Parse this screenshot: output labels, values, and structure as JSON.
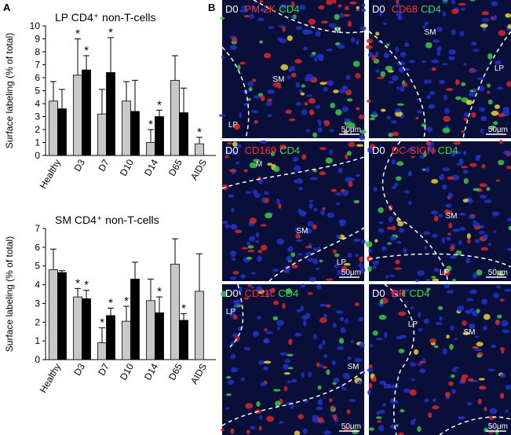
{
  "figure": {
    "panel_a_label": "A",
    "panel_b_label": "B"
  },
  "chart_data": [
    {
      "type": "bar",
      "title": "LP CD4⁺ non-T-cells",
      "y_label": "Surface labeling (% of total)",
      "categories": [
        "Healthy",
        "D3",
        "D7",
        "D10",
        "D14",
        "D65",
        "AIDS"
      ],
      "series": [
        {
          "color": "#c8c8c8",
          "values": [
            4.2,
            6.2,
            3.2,
            4.2,
            1.0,
            5.8,
            0.9
          ],
          "errors": [
            1.5,
            2.8,
            1.9,
            1.5,
            1.0,
            1.9,
            0.5
          ],
          "markers": [
            null,
            "*",
            null,
            null,
            "*",
            null,
            "*"
          ]
        },
        {
          "color": "#000000",
          "values": [
            3.6,
            6.6,
            6.4,
            3.4,
            3.0,
            3.3,
            null
          ],
          "errors": [
            1.5,
            1.1,
            2.7,
            2.4,
            0.5,
            1.9,
            null
          ],
          "markers": [
            null,
            "*",
            "*",
            null,
            "*",
            null,
            null
          ]
        }
      ],
      "ylim": [
        0,
        10
      ],
      "yticks": [
        0,
        1,
        2,
        3,
        4,
        5,
        6,
        7,
        8,
        9,
        10
      ]
    },
    {
      "type": "bar",
      "title": "SM CD4⁺ non-T-cells",
      "y_label": "Surface labeling (% of total)",
      "categories": [
        "Healthy",
        "D3",
        "D7",
        "D10",
        "D14",
        "D65",
        "AIDS"
      ],
      "series": [
        {
          "color": "#c8c8c8",
          "values": [
            4.8,
            3.35,
            0.9,
            2.05,
            3.15,
            5.1,
            3.65
          ],
          "errors": [
            1.1,
            0.45,
            0.8,
            0.8,
            1.15,
            1.35,
            2.0
          ],
          "markers": [
            null,
            "*",
            "*",
            "*",
            null,
            null,
            null
          ]
        },
        {
          "color": "#000000",
          "values": [
            4.65,
            3.25,
            2.35,
            4.3,
            2.5,
            2.1,
            null
          ],
          "errors": [
            0.1,
            0.45,
            0.4,
            0.9,
            0.85,
            0.35,
            null
          ],
          "markers": [
            null,
            "*",
            "*",
            null,
            "*",
            "*",
            null
          ]
        }
      ],
      "ylim": [
        0,
        7
      ],
      "yticks": [
        0,
        1,
        2,
        3,
        4,
        5,
        6,
        7
      ]
    }
  ],
  "micrographs": [
    {
      "day": "D0",
      "stain": "PM-2K",
      "counterstain": "CD4",
      "regions": [
        "M",
        "SM",
        "LP"
      ],
      "scale": "50μm"
    },
    {
      "day": "D0",
      "stain": "CD68",
      "counterstain": "CD4",
      "regions": [
        "SM",
        "LP"
      ],
      "scale": "50μm"
    },
    {
      "day": "D0",
      "stain": "CD169",
      "counterstain": "CD4",
      "regions": [
        "M",
        "SM",
        "LP"
      ],
      "scale": "50μm"
    },
    {
      "day": "D0",
      "stain": "DC-SIGN",
      "counterstain": "CD4",
      "regions": [
        "SM",
        "LP"
      ],
      "scale": "50μm"
    },
    {
      "day": "D0",
      "stain": "CD11c",
      "counterstain": "CD4",
      "regions": [
        "LP",
        "SM"
      ],
      "scale": "50μm"
    },
    {
      "day": "D0",
      "stain": "DR",
      "counterstain": "CD4",
      "regions": [
        "LP",
        "SM"
      ],
      "scale": "50μm"
    }
  ]
}
